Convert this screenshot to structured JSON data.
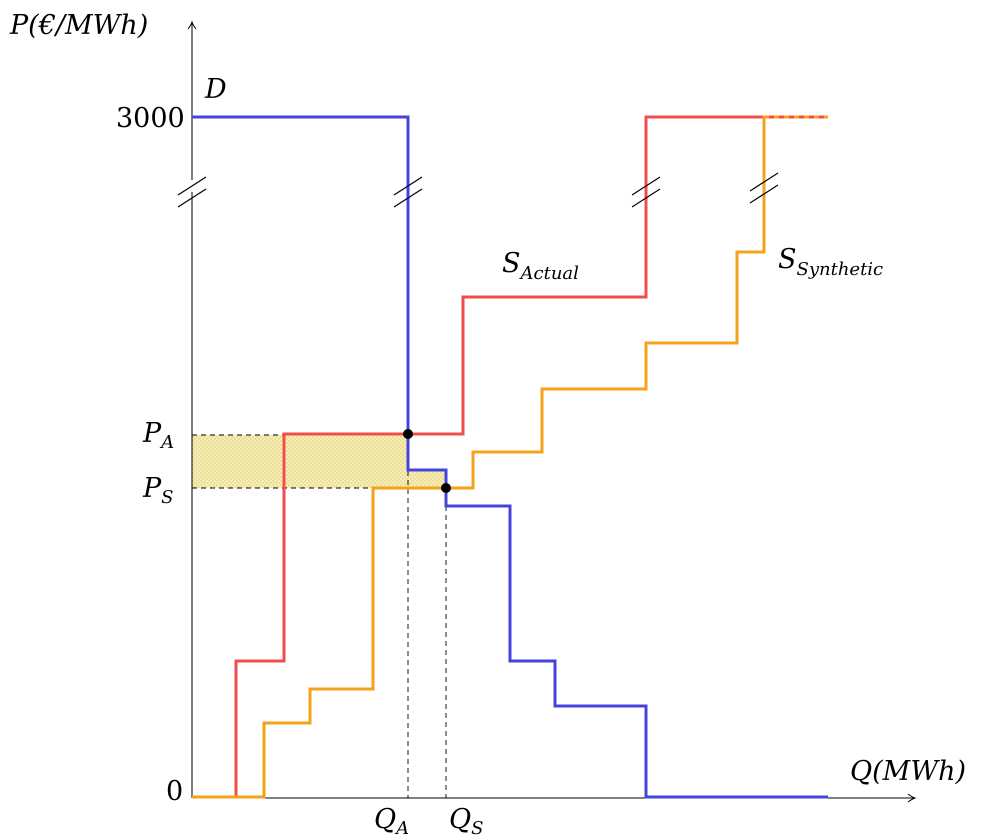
{
  "axes": {
    "y_label": "P(€/MWh)",
    "x_label": "Q(MWh)",
    "y_top_tick": "3000",
    "origin_tick": "0"
  },
  "price_labels": [
    {
      "main": "P",
      "sub": "A"
    },
    {
      "main": "P",
      "sub": "S"
    }
  ],
  "quantity_labels": [
    {
      "main": "Q",
      "sub": "A"
    },
    {
      "main": "Q",
      "sub": "S"
    }
  ],
  "curve_labels": {
    "demand": "D",
    "actual": {
      "main": "S",
      "sub": "Actual"
    },
    "synthetic": {
      "main": "S",
      "sub": "Synthetic"
    }
  },
  "colors": {
    "demand": "#4444dd",
    "actual": "#f04d4d",
    "synthetic": "#f5a21b",
    "shade": "#f5e9a8",
    "axis": "#000000"
  }
}
